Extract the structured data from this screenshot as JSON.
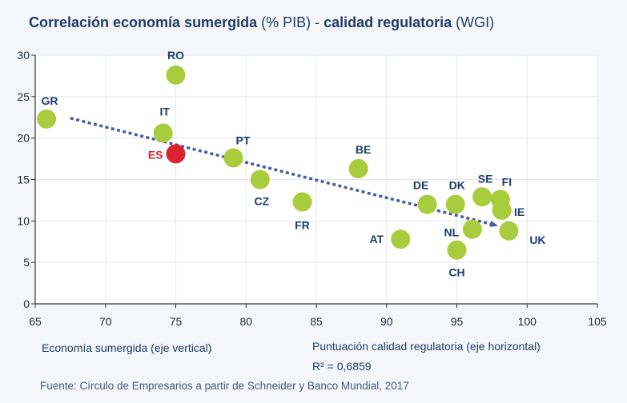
{
  "chart_data": {
    "type": "scatter",
    "title": {
      "part1": "Correlación economía sumergida",
      "part2": " (% PIB) - ",
      "part3": "calidad regulatoria",
      "part4": " (WGI)"
    },
    "xlabel": "Puntuación calidad regulatoria (eje horizontal)",
    "ylabel": "Economía sumergida (eje vertical)",
    "xlim": [
      65,
      105
    ],
    "ylim": [
      0,
      30
    ],
    "xticks": [
      65,
      70,
      75,
      80,
      85,
      90,
      95,
      100,
      105
    ],
    "yticks": [
      0,
      5,
      10,
      15,
      20,
      25,
      30
    ],
    "r2_label": "R² = 0,6859",
    "source": "Fuente: Círculo de Empresarios a partir de Schneider y Banco Mundial, 2017",
    "colors": {
      "point": "#a9cc3c",
      "highlight": "#d9232e",
      "label": "#1f3c66",
      "trend": "#4a5d9e"
    },
    "trendline": {
      "x": [
        67.5,
        97.5
      ],
      "y": [
        22.4,
        9.6
      ]
    },
    "points": [
      {
        "label": "RO",
        "x": 75,
        "y": 27.6
      },
      {
        "label": "GR",
        "x": 65.8,
        "y": 22.3
      },
      {
        "label": "IT",
        "x": 74.1,
        "y": 20.6
      },
      {
        "label": "ES",
        "x": 75,
        "y": 18.1,
        "highlight": true
      },
      {
        "label": "PT",
        "x": 79.1,
        "y": 17.6
      },
      {
        "label": "CZ",
        "x": 81,
        "y": 15
      },
      {
        "label": "BE",
        "x": 88,
        "y": 16.3
      },
      {
        "label": "FR",
        "x": 84,
        "y": 12.3
      },
      {
        "label": "DE",
        "x": 92.9,
        "y": 12
      },
      {
        "label": "DK",
        "x": 94.9,
        "y": 12
      },
      {
        "label": "SE",
        "x": 96.8,
        "y": 12.9
      },
      {
        "label": "FI",
        "x": 98.1,
        "y": 12.6
      },
      {
        "label": "IE",
        "x": 98.2,
        "y": 11.3
      },
      {
        "label": "NL",
        "x": 96.1,
        "y": 9
      },
      {
        "label": "UK",
        "x": 98.7,
        "y": 8.8
      },
      {
        "label": "AT",
        "x": 91,
        "y": 7.8
      },
      {
        "label": "CH",
        "x": 95,
        "y": 6.5
      }
    ]
  }
}
